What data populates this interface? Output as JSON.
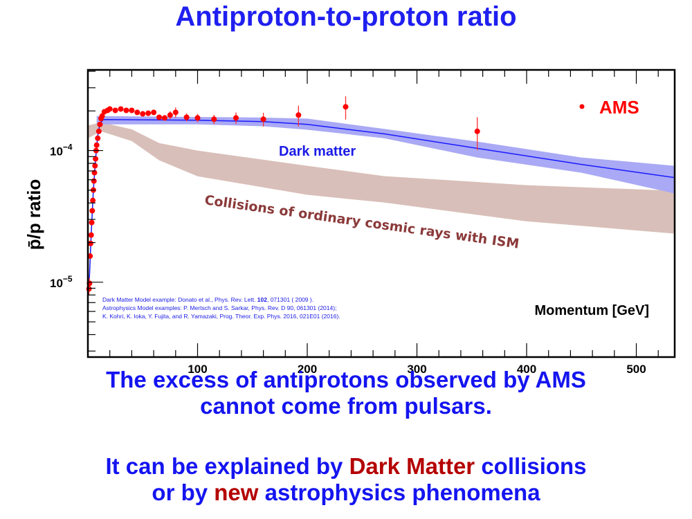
{
  "slide": {
    "title": "Antiproton-to-proton ratio",
    "message1_line1": "The excess of antiprotons observed by AMS",
    "message1_line2": "cannot come from pulsars.",
    "message2_pre": "It can be explained by ",
    "message2_dm": "Dark Matter",
    "message2_post": " collisions",
    "message2_line2_pre": "or by ",
    "message2_new": "new",
    "message2_line2_post": " astrophysics phenomena"
  },
  "chart_data": {
    "type": "scatter",
    "title": "",
    "xlabel": "Momentum [GeV]",
    "ylabel": "p̄/p ratio",
    "xlim": [
      0,
      535
    ],
    "ylim": [
      2.7e-06,
      0.00041
    ],
    "yscale": "log",
    "xticks": [
      100,
      200,
      300,
      400,
      500
    ],
    "yticks": [
      {
        "value": 0.0001,
        "label_base": "10",
        "label_exp": "−4"
      },
      {
        "value": 1e-05,
        "label_base": "10",
        "label_exp": "−5"
      }
    ],
    "legend": {
      "position": "top-right",
      "entries": [
        {
          "name": "AMS",
          "marker": "•",
          "color": "#ff0000"
        }
      ]
    },
    "annotations": {
      "dark_matter": "Dark matter",
      "collisions": "Collisions of ordinary cosmic rays with ISM",
      "references": [
        {
          "pre": "Dark Matter Model example: Donato et al., Phys. Rev. Lett. ",
          "bold": "102",
          "post": ", 071301 ( 2009 )."
        },
        {
          "pre": "Astrophysics Model examples: P. Mertsch and S. Sarkar, Phys. Rev. D 90, 061301 (2014);",
          "bold": "",
          "post": ""
        },
        {
          "pre": "K. Kohri, K. Ioka, Y. Fujita, and R. Yamazaki, Prog. Theor. Exp. Phys. 2016, 021E01 (2016).",
          "bold": "",
          "post": ""
        }
      ]
    },
    "colors": {
      "ams": "#ff0000",
      "dm_line": "#1a1aff",
      "dm_band": "#a9a9f5",
      "bg_band": "#d9bfb9",
      "dm_text": "#1a1ae6",
      "collisions_text": "#8b3a3a"
    },
    "series": [
      {
        "name": "AMS",
        "points": [
          [
            1,
            8.9e-06,
            0.1
          ],
          [
            1.5,
            9.8e-06,
            0.1
          ],
          [
            2,
            1.58e-05,
            0.06
          ],
          [
            2.5,
            1.97e-05,
            0.05
          ],
          [
            3,
            2.28e-05,
            0.05
          ],
          [
            3.5,
            2.84e-05,
            0.05
          ],
          [
            4,
            3.49e-05,
            0.05
          ],
          [
            4.5,
            4.18e-05,
            0.05
          ],
          [
            5,
            5.01e-05,
            0.05
          ],
          [
            5.5,
            5.87e-05,
            0.05
          ],
          [
            6,
            6.79e-05,
            0.05
          ],
          [
            6.5,
            7.66e-05,
            0.05
          ],
          [
            7,
            8.65e-05,
            0.05
          ],
          [
            7.5,
            0.0001,
            0.05
          ],
          [
            8,
            0.00011,
            0.05
          ],
          [
            9,
            0.000124,
            0.05
          ],
          [
            10,
            0.00014,
            0.05
          ],
          [
            11,
            0.000158,
            0.05
          ],
          [
            12,
            0.000175,
            0.05
          ],
          [
            13,
            0.000183,
            0.05
          ],
          [
            15,
            0.000197,
            0.05
          ],
          [
            18,
            0.000202,
            0.05
          ],
          [
            20,
            0.000207,
            0.05
          ],
          [
            25,
            0.000202,
            0.05
          ],
          [
            30,
            0.000207,
            0.05
          ],
          [
            35,
            0.000202,
            0.05
          ],
          [
            40,
            0.000202,
            0.05
          ],
          [
            45,
            0.000195,
            0.05
          ],
          [
            50,
            0.00019,
            0.05
          ],
          [
            55,
            0.000192,
            0.05
          ],
          [
            60,
            0.000195,
            0.06
          ],
          [
            65,
            0.000179,
            0.06
          ],
          [
            70,
            0.000177,
            0.06
          ],
          [
            75,
            0.000186,
            0.07
          ],
          [
            80,
            0.000195,
            0.09
          ],
          [
            90,
            0.000179,
            0.07
          ],
          [
            100,
            0.000177,
            0.07
          ],
          [
            115,
            0.000173,
            0.08
          ],
          [
            135,
            0.000177,
            0.1
          ],
          [
            160,
            0.000173,
            0.12
          ],
          [
            192,
            0.000186,
            0.18
          ],
          [
            235,
            0.000215,
            0.2
          ],
          [
            355,
            0.00014,
            0.28
          ]
        ]
      },
      {
        "name": "Dark matter",
        "line": [
          [
            0,
            8.5e-06
          ],
          [
            1,
            9e-06
          ],
          [
            3,
            2.3e-05
          ],
          [
            5,
            5e-05
          ],
          [
            7,
            8.6e-05
          ],
          [
            9,
            0.00013
          ],
          [
            11,
            0.00016
          ],
          [
            14,
            0.000172
          ],
          [
            100,
            0.00017
          ],
          [
            160,
            0.000166
          ],
          [
            200,
            0.000158
          ],
          [
            270,
            0.000134
          ],
          [
            355,
            0.000104
          ],
          [
            450,
            7.85e-05
          ],
          [
            535,
            6.23e-05
          ]
        ],
        "band": [
          [
            8,
            0.000158,
            0.000183
          ],
          [
            100,
            0.000158,
            0.00018
          ],
          [
            160,
            0.000153,
            0.000178
          ],
          [
            200,
            0.000144,
            0.000175
          ],
          [
            270,
            0.000124,
            0.000146
          ],
          [
            355,
            8.86e-05,
            0.000117
          ],
          [
            450,
            6.79e-05,
            8.86e-05
          ],
          [
            535,
            4.72e-05,
            7.66e-05
          ]
        ]
      },
      {
        "name": "Collisions of ordinary cosmic rays with ISM",
        "band": [
          [
            0,
            0.000124,
            0.000155
          ],
          [
            12,
            0.00014,
            0.000164
          ],
          [
            40,
            0.000118,
            0.000145
          ],
          [
            65,
            8.44e-05,
            0.000114
          ],
          [
            100,
            6.38e-05,
            0.0001
          ],
          [
            200,
            4.61e-05,
            7.66e-05
          ],
          [
            270,
            4.03e-05,
            6.4e-05
          ],
          [
            400,
            2.9e-05,
            5.46e-05
          ],
          [
            535,
            2.34e-05,
            4.95e-05
          ]
        ]
      }
    ]
  }
}
